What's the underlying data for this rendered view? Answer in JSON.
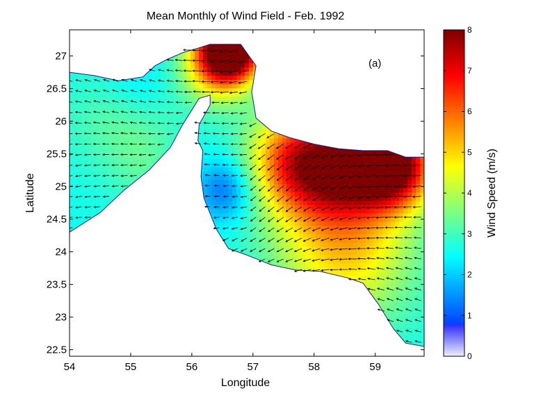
{
  "chart_data": {
    "type": "heatmap",
    "title": "Mean Monthly of Wind Field - Feb. 1992",
    "xlabel": "Longitude",
    "ylabel": "Latitude",
    "xlim": [
      54,
      59.8
    ],
    "ylim": [
      22.4,
      27.4
    ],
    "x_ticks": [
      "54",
      "55",
      "56",
      "57",
      "58",
      "59"
    ],
    "y_ticks": [
      "22.5",
      "23",
      "23.5",
      "24",
      "24.5",
      "25",
      "25.5",
      "26",
      "26.5",
      "27"
    ],
    "annotation": "(a)",
    "colorbar": {
      "label": "Wind Speed (m/s)",
      "range": [
        0,
        8
      ],
      "ticks": [
        "0",
        "1",
        "2",
        "3",
        "4",
        "5",
        "6",
        "7",
        "8"
      ],
      "colormap": "jet"
    },
    "sea_region": [
      [
        54.0,
        26.75
      ],
      [
        54.4,
        26.7
      ],
      [
        54.8,
        26.62
      ],
      [
        55.2,
        26.68
      ],
      [
        55.4,
        26.85
      ],
      [
        55.6,
        26.95
      ],
      [
        55.85,
        27.05
      ],
      [
        56.1,
        27.12
      ],
      [
        56.3,
        27.18
      ],
      [
        56.45,
        27.18
      ],
      [
        56.8,
        27.18
      ],
      [
        57.05,
        26.85
      ],
      [
        56.98,
        26.45
      ],
      [
        57.05,
        26.05
      ],
      [
        57.3,
        25.85
      ],
      [
        57.6,
        25.75
      ],
      [
        58.0,
        25.65
      ],
      [
        58.4,
        25.58
      ],
      [
        58.8,
        25.55
      ],
      [
        59.2,
        25.55
      ],
      [
        59.5,
        25.45
      ],
      [
        59.8,
        25.45
      ],
      [
        59.8,
        22.55
      ],
      [
        59.5,
        22.6
      ],
      [
        59.3,
        22.82
      ],
      [
        59.05,
        23.2
      ],
      [
        58.8,
        23.52
      ],
      [
        58.55,
        23.6
      ],
      [
        58.1,
        23.7
      ],
      [
        57.7,
        23.72
      ],
      [
        57.3,
        23.8
      ],
      [
        56.9,
        23.95
      ],
      [
        56.6,
        24.05
      ],
      [
        56.4,
        24.35
      ],
      [
        56.2,
        24.82
      ],
      [
        56.15,
        25.15
      ],
      [
        56.18,
        25.55
      ],
      [
        56.1,
        25.7
      ],
      [
        56.12,
        25.95
      ],
      [
        56.3,
        26.25
      ],
      [
        56.3,
        26.4
      ],
      [
        56.12,
        26.35
      ],
      [
        55.85,
        25.95
      ],
      [
        55.65,
        25.6
      ],
      [
        55.3,
        25.25
      ],
      [
        54.9,
        24.95
      ],
      [
        54.5,
        24.6
      ],
      [
        54.0,
        24.3
      ]
    ],
    "speed_sources": [
      [
        56.65,
        27.15,
        6.5,
        0.35
      ],
      [
        56.4,
        26.85,
        2.5,
        0.4
      ],
      [
        59.3,
        25.35,
        5.5,
        0.45
      ],
      [
        58.5,
        25.3,
        3.5,
        0.55
      ],
      [
        57.7,
        25.4,
        3.5,
        0.55
      ],
      [
        58.5,
        24.1,
        2.5,
        0.8
      ],
      [
        55.2,
        25.9,
        0.5,
        0.5
      ],
      [
        56.55,
        24.95,
        -1.5,
        0.35
      ],
      [
        56.65,
        24.3,
        0.0,
        0.45
      ],
      [
        55.15,
        26.5,
        -0.4,
        0.4
      ],
      [
        54.5,
        26.0,
        0.4,
        0.5
      ],
      [
        55.2,
        25.2,
        0.4,
        0.4
      ]
    ],
    "arrow_field": {
      "lon_spacing": 0.15,
      "lat_spacing": 0.16,
      "mean_direction_deg": 190,
      "max_length_px": 12
    }
  }
}
